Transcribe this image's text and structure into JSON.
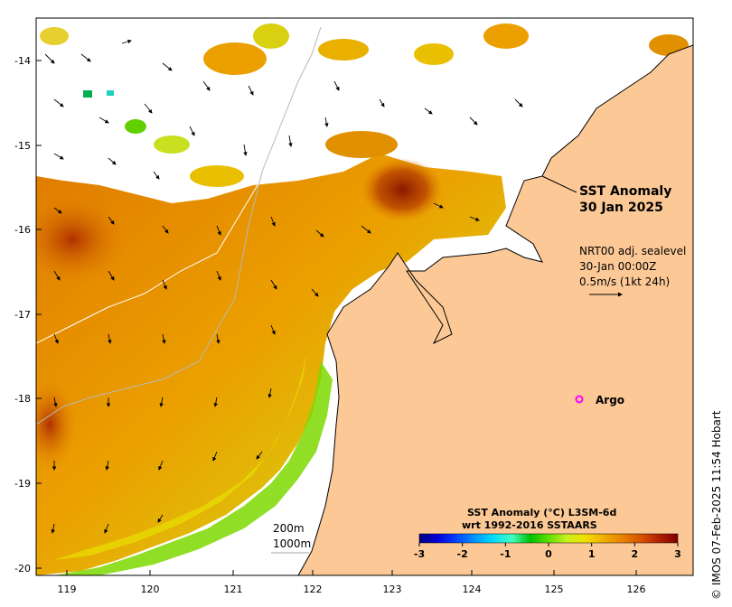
{
  "map": {
    "title_line1": "SST Anomaly",
    "title_line2": "30 Jan 2025",
    "velocity": {
      "line1": "NRT00 adj. sealevel",
      "line2": "30-Jan 00:00Z",
      "line3": "0.5m/s (1kt 24h)"
    },
    "argo_label": "Argo",
    "depth_contours": [
      "200m",
      "1000m"
    ],
    "credit": "© IMOS 07-Feb-2025 11:54 Hobart",
    "x_ticks": [
      "119",
      "120",
      "121",
      "122",
      "123",
      "124",
      "125",
      "126"
    ],
    "y_ticks": [
      "-14",
      "-15",
      "-16",
      "-17",
      "-18",
      "-19",
      "-20"
    ],
    "colorbar": {
      "title_line1": "SST Anomaly (°C) L3SM-6d",
      "title_line2": "wrt 1992-2016 SSTAARS",
      "ticks": [
        "-3",
        "-2",
        "-1",
        "0",
        "1",
        "2",
        "3"
      ],
      "colors": [
        "#00007f",
        "#0000d8",
        "#0040ff",
        "#0090ff",
        "#00d8ff",
        "#40ffc0",
        "#00c000",
        "#60e000",
        "#c8f020",
        "#f0e000",
        "#f0b000",
        "#e88000",
        "#d85000",
        "#b02000",
        "#7f0000"
      ]
    },
    "colors": {
      "land": "#fcc996",
      "no_data": "#ffffff",
      "argo_marker": "#ff00ff"
    }
  }
}
